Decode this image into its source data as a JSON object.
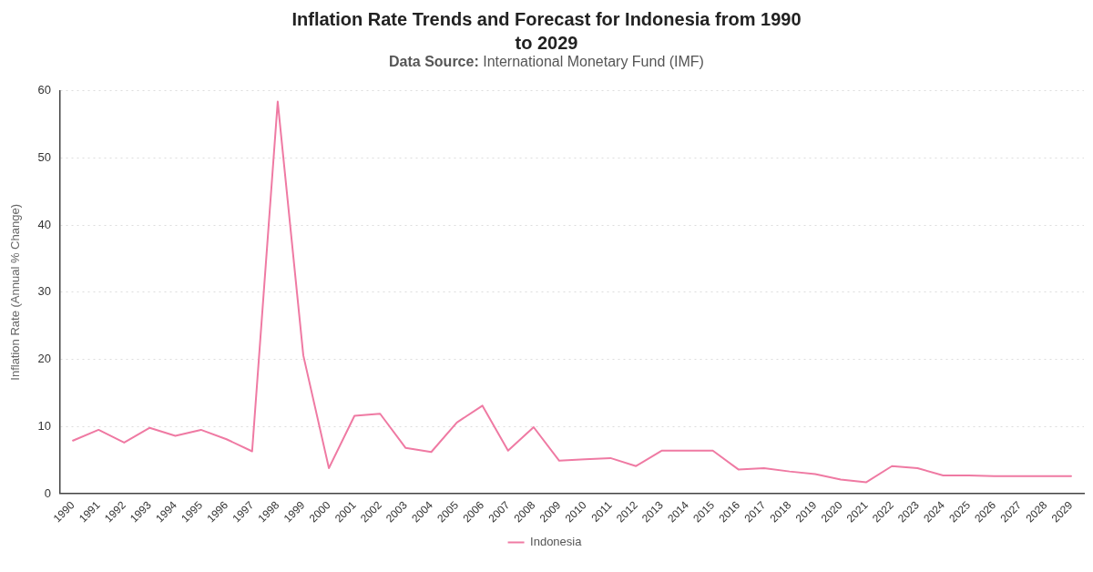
{
  "chart_data": {
    "type": "line",
    "title": "Inflation Rate Trends and Forecast for Indonesia from 1990 to 2029",
    "subtitle": "Data Source: International Monetary Fund (IMF)",
    "ylabel": "Inflation Rate (Annual % Change)",
    "categories": [
      "1990",
      "1991",
      "1992",
      "1993",
      "1994",
      "1995",
      "1996",
      "1997",
      "1998",
      "1999",
      "2000",
      "2001",
      "2002",
      "2003",
      "2004",
      "2005",
      "2006",
      "2007",
      "2008",
      "2009",
      "2010",
      "2011",
      "2012",
      "2013",
      "2014",
      "2015",
      "2016",
      "2017",
      "2018",
      "2019",
      "2020",
      "2021",
      "2022",
      "2023",
      "2024",
      "2025",
      "2026",
      "2027",
      "2028",
      "2029"
    ],
    "series": [
      {
        "name": "Indonesia",
        "color": "#ef7aa3",
        "values": [
          7.9,
          9.5,
          7.6,
          9.8,
          8.6,
          9.5,
          8.1,
          6.3,
          58.4,
          20.6,
          3.8,
          11.6,
          11.9,
          6.8,
          6.2,
          10.6,
          13.1,
          6.4,
          9.9,
          4.9,
          5.1,
          5.3,
          4.1,
          6.4,
          6.4,
          6.4,
          3.6,
          3.8,
          3.3,
          2.9,
          2.1,
          1.7,
          4.1,
          3.8,
          2.7,
          2.7,
          2.6,
          2.6,
          2.6,
          2.6
        ]
      }
    ],
    "ylim": [
      0,
      60
    ],
    "yticks": [
      0,
      10,
      20,
      30,
      40,
      50,
      60
    ],
    "grid": "y",
    "legend": "bottom",
    "marker": "none",
    "line_style": "solid"
  }
}
